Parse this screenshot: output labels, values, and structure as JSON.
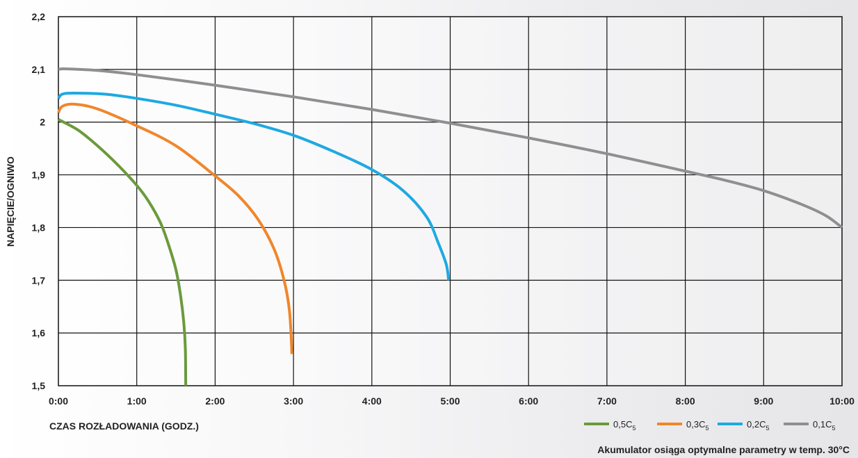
{
  "chart_data": {
    "type": "line",
    "xlabel": "CZAS ROZŁADOWANIA (GODZ.)",
    "ylabel": "NAPIĘCIE/OGNIWO",
    "note": "Akumulator osiąga optymalne parametry w temp. 30°C",
    "xlim": [
      0,
      10
    ],
    "ylim": [
      1.5,
      2.2
    ],
    "x_tick_labels": [
      "0:00",
      "1:00",
      "2:00",
      "3:00",
      "4:00",
      "5:00",
      "6:00",
      "7:00",
      "8:00",
      "9:00",
      "10:00"
    ],
    "y_ticks": [
      1.5,
      1.6,
      1.7,
      1.8,
      1.9,
      2.0,
      2.1,
      2.2
    ],
    "y_tick_labels": [
      "1,5",
      "1,6",
      "1,7",
      "1,8",
      "1,9",
      "2",
      "2,1",
      "2,2"
    ],
    "grid": true,
    "legend_position": "bottom-right",
    "series": [
      {
        "label_main": "0,5C",
        "label_sub": "5",
        "color": "#6b9a3b",
        "points": [
          [
            0,
            2.005
          ],
          [
            0.25,
            1.985
          ],
          [
            0.5,
            1.955
          ],
          [
            0.75,
            1.92
          ],
          [
            1.0,
            1.88
          ],
          [
            1.15,
            1.85
          ],
          [
            1.3,
            1.81
          ],
          [
            1.4,
            1.77
          ],
          [
            1.5,
            1.72
          ],
          [
            1.56,
            1.67
          ],
          [
            1.6,
            1.62
          ],
          [
            1.62,
            1.57
          ],
          [
            1.625,
            1.5
          ]
        ]
      },
      {
        "label_main": "0,3C",
        "label_sub": "5",
        "color": "#f0862a",
        "points": [
          [
            0,
            2.018
          ],
          [
            0.05,
            2.03
          ],
          [
            0.2,
            2.034
          ],
          [
            0.5,
            2.025
          ],
          [
            1.0,
            1.993
          ],
          [
            1.5,
            1.955
          ],
          [
            2.0,
            1.898
          ],
          [
            2.3,
            1.86
          ],
          [
            2.55,
            1.815
          ],
          [
            2.75,
            1.76
          ],
          [
            2.88,
            1.7
          ],
          [
            2.95,
            1.64
          ],
          [
            2.98,
            1.56
          ]
        ]
      },
      {
        "label_main": "0,2C",
        "label_sub": "5",
        "color": "#1ea9e1",
        "points": [
          [
            0,
            2.045
          ],
          [
            0.05,
            2.053
          ],
          [
            0.2,
            2.055
          ],
          [
            0.6,
            2.053
          ],
          [
            1.0,
            2.045
          ],
          [
            1.5,
            2.032
          ],
          [
            2.0,
            2.015
          ],
          [
            2.5,
            1.997
          ],
          [
            3.0,
            1.975
          ],
          [
            3.5,
            1.945
          ],
          [
            4.0,
            1.91
          ],
          [
            4.4,
            1.87
          ],
          [
            4.7,
            1.82
          ],
          [
            4.85,
            1.77
          ],
          [
            4.95,
            1.73
          ],
          [
            4.98,
            1.7
          ]
        ]
      },
      {
        "label_main": "0,1C",
        "label_sub": "5",
        "color": "#8f8e91",
        "points": [
          [
            0,
            2.1
          ],
          [
            0.1,
            2.101
          ],
          [
            0.5,
            2.098
          ],
          [
            1.0,
            2.09
          ],
          [
            2.0,
            2.07
          ],
          [
            3.0,
            2.048
          ],
          [
            4.0,
            2.024
          ],
          [
            5.0,
            1.998
          ],
          [
            6.0,
            1.97
          ],
          [
            7.0,
            1.94
          ],
          [
            8.0,
            1.907
          ],
          [
            8.5,
            1.89
          ],
          [
            9.0,
            1.87
          ],
          [
            9.5,
            1.843
          ],
          [
            9.8,
            1.822
          ],
          [
            10.0,
            1.8
          ]
        ]
      }
    ]
  }
}
